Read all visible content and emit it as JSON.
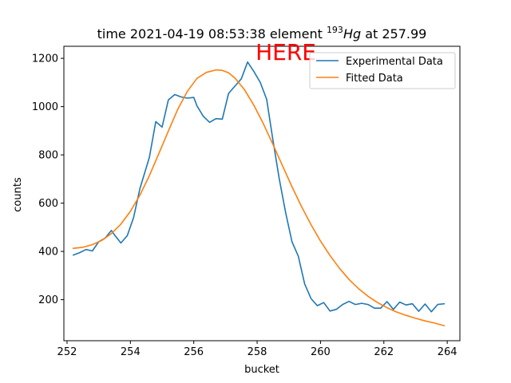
{
  "chart_data": {
    "type": "line",
    "title": {
      "prefix": "time 2021-04-19 08:53:38 element ",
      "mass_number": "193",
      "element": "Hg",
      "suffix": " at 257.99"
    },
    "xlabel": "bucket",
    "ylabel": "counts",
    "xlim": [
      251.9,
      264.4
    ],
    "ylim": [
      30,
      1250
    ],
    "xticks": [
      252,
      254,
      256,
      258,
      260,
      262,
      264
    ],
    "yticks": [
      200,
      400,
      600,
      800,
      1000,
      1200
    ],
    "grid": false,
    "legend": {
      "position": "top-right"
    },
    "annotation": {
      "text": "HERE",
      "color": "#ff0000",
      "x": 258.0
    },
    "series": [
      {
        "name": "Experimental Data",
        "color": "#1f77b4",
        "x": [
          252.2,
          252.4,
          252.6,
          252.8,
          253.0,
          253.2,
          253.4,
          253.5,
          253.7,
          253.9,
          254.1,
          254.3,
          254.6,
          254.8,
          255.0,
          255.2,
          255.4,
          255.6,
          255.8,
          256.0,
          256.1,
          256.3,
          256.5,
          256.7,
          256.9,
          257.1,
          257.3,
          257.5,
          257.7,
          257.9,
          258.1,
          258.3,
          258.5,
          258.7,
          258.9,
          259.1,
          259.3,
          259.5,
          259.7,
          259.9,
          260.1,
          260.3,
          260.5,
          260.7,
          260.9,
          261.1,
          261.3,
          261.5,
          261.7,
          261.9,
          262.1,
          262.3,
          262.5,
          262.7,
          262.9,
          263.1,
          263.3,
          263.5,
          263.7,
          263.9
        ],
        "y": [
          385,
          395,
          408,
          402,
          440,
          455,
          487,
          468,
          435,
          465,
          540,
          660,
          790,
          938,
          915,
          1028,
          1050,
          1040,
          1035,
          1038,
          1003,
          960,
          935,
          950,
          948,
          1055,
          1085,
          1115,
          1185,
          1145,
          1100,
          1030,
          860,
          700,
          560,
          440,
          380,
          265,
          205,
          175,
          188,
          153,
          160,
          180,
          193,
          180,
          185,
          180,
          165,
          165,
          192,
          160,
          190,
          178,
          183,
          152,
          182,
          150,
          180,
          183
        ]
      },
      {
        "name": "Fitted Data",
        "color": "#ff7f0e",
        "x": [
          252.2,
          252.5,
          252.8,
          253.1,
          253.4,
          253.7,
          254.0,
          254.3,
          254.6,
          254.9,
          255.2,
          255.5,
          255.8,
          256.1,
          256.4,
          256.7,
          256.9,
          257.1,
          257.3,
          257.6,
          257.9,
          258.2,
          258.5,
          258.8,
          259.1,
          259.4,
          259.7,
          260.0,
          260.3,
          260.6,
          260.9,
          261.2,
          261.5,
          261.8,
          262.1,
          262.4,
          262.7,
          263.0,
          263.3,
          263.6,
          263.9
        ],
        "y": [
          413,
          417,
          428,
          446,
          474,
          513,
          566,
          633,
          714,
          806,
          899,
          990,
          1064,
          1117,
          1142,
          1152,
          1150,
          1140,
          1118,
          1070,
          1005,
          928,
          843,
          755,
          668,
          586,
          511,
          443,
          383,
          330,
          284,
          246,
          214,
          188,
          167,
          149,
          135,
          123,
          112,
          103,
          92
        ]
      }
    ]
  }
}
